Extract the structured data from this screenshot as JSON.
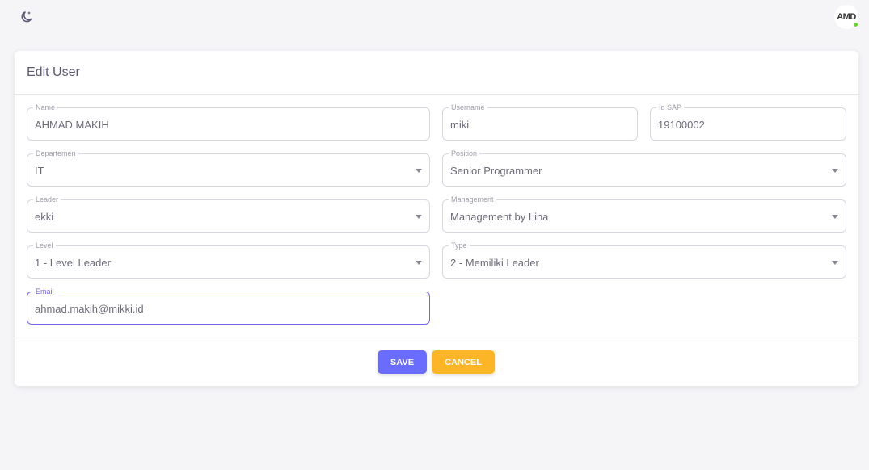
{
  "header": {
    "avatar_text": "AMD",
    "status_color": "#63d52e"
  },
  "card": {
    "title": "Edit User"
  },
  "fields": {
    "name": {
      "label": "Name",
      "value": "AHMAD MAKIH"
    },
    "username": {
      "label": "Username",
      "value": "miki"
    },
    "idsap": {
      "label": "Id SAP",
      "value": "19100002"
    },
    "departemen": {
      "label": "Departemen",
      "value": "IT"
    },
    "position": {
      "label": "Position",
      "value": "Senior Programmer"
    },
    "leader": {
      "label": "Leader",
      "value": "ekki"
    },
    "management": {
      "label": "Management",
      "value": "Management by Lina"
    },
    "level": {
      "label": "Level",
      "value": "1 - Level Leader"
    },
    "type": {
      "label": "Type",
      "value": "2 - Memiliki Leader"
    },
    "email": {
      "label": "Email",
      "value": "ahmad.makih@mikki.id"
    }
  },
  "actions": {
    "save": "SAVE",
    "cancel": "CANCEL",
    "save_color": "#6a6cff",
    "cancel_color": "#fdb528"
  }
}
